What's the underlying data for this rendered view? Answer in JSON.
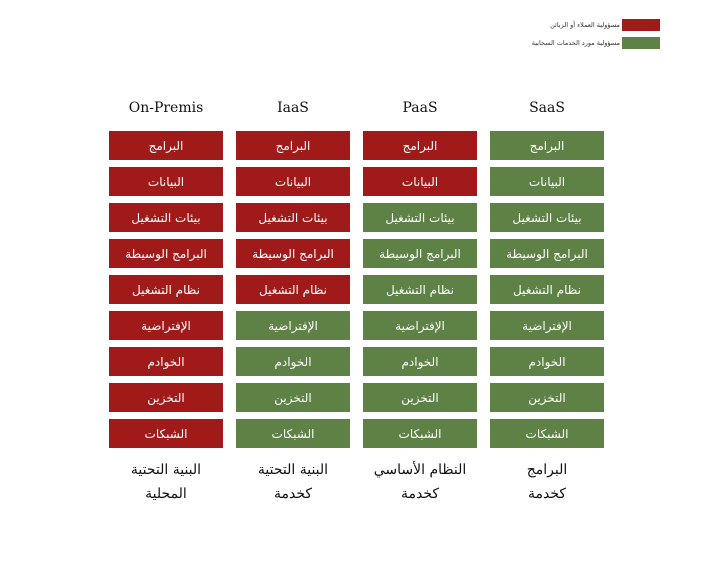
{
  "colors": {
    "customer": "#a01a1a",
    "provider": "#5e8245"
  },
  "legend": [
    {
      "label": "مسؤولية العملاء أو الزبائن",
      "color": "#a01a1a"
    },
    {
      "label": "مسؤولية مورد الخدمات السحابية",
      "color": "#5e8245"
    }
  ],
  "layers": [
    "البرامج",
    "البيانات",
    "بيئات التشغيل",
    "البرامج الوسيطة",
    "نظام التشغيل",
    "الإفتراضية",
    "الخوادم",
    "التخزين",
    "الشبكات"
  ],
  "columns": [
    {
      "title": "On-Premis",
      "footer": [
        "البنية التحتية",
        "المحلية"
      ],
      "customer_layers": 9
    },
    {
      "title": "IaaS",
      "footer": [
        "البنية التحتية",
        "كخدمة"
      ],
      "customer_layers": 5
    },
    {
      "title": "PaaS",
      "footer": [
        "النظام الأساسي",
        "كخدمة"
      ],
      "customer_layers": 2
    },
    {
      "title": "SaaS",
      "footer": [
        "البرامج",
        "كخدمة"
      ],
      "customer_layers": 0
    }
  ]
}
